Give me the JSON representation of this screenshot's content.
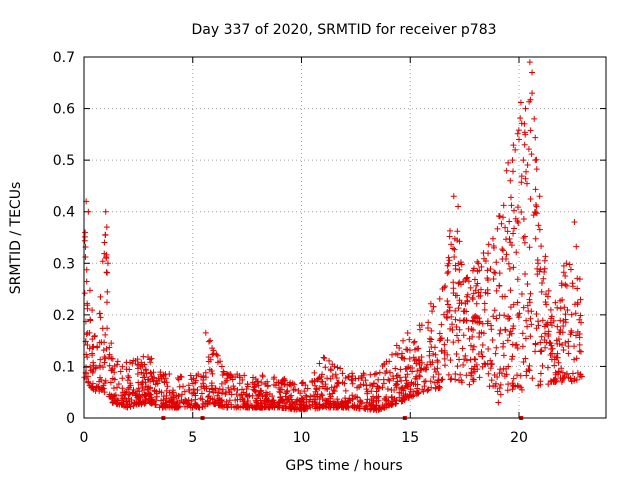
{
  "chart_data": {
    "type": "scatter",
    "title": "Day 337 of 2020, SRMTID for receiver p783",
    "xlabel": "GPS time / hours",
    "ylabel": "SRMTID / TECUs",
    "xlim": [
      0,
      24
    ],
    "ylim": [
      0,
      0.7
    ],
    "x_ticks": [
      0,
      5,
      10,
      15,
      20
    ],
    "x_tick_labels": [
      "0",
      "5",
      "10",
      "15",
      "20"
    ],
    "y_ticks": [
      0,
      0.1,
      0.2,
      0.3,
      0.4,
      0.5,
      0.6,
      0.7
    ],
    "y_tick_labels": [
      "0",
      "0.1",
      "0.2",
      "0.3",
      "0.4",
      "0.5",
      "0.6",
      "0.7"
    ],
    "grid": true,
    "legend": "none",
    "marker": "+",
    "color": "#e00000",
    "zero_markers_x": [
      3.65,
      5.45,
      14.75,
      20.1
    ],
    "profile": [
      {
        "t": 0.0,
        "lo": 0.08,
        "hi": 0.42
      },
      {
        "t": 0.3,
        "lo": 0.06,
        "hi": 0.25
      },
      {
        "t": 0.6,
        "lo": 0.05,
        "hi": 0.14
      },
      {
        "t": 1.0,
        "lo": 0.05,
        "hi": 0.4
      },
      {
        "t": 1.3,
        "lo": 0.03,
        "hi": 0.12
      },
      {
        "t": 2.0,
        "lo": 0.02,
        "hi": 0.11
      },
      {
        "t": 3.0,
        "lo": 0.03,
        "hi": 0.13
      },
      {
        "t": 3.5,
        "lo": 0.02,
        "hi": 0.09
      },
      {
        "t": 4.5,
        "lo": 0.02,
        "hi": 0.08
      },
      {
        "t": 5.5,
        "lo": 0.02,
        "hi": 0.1
      },
      {
        "t": 5.8,
        "lo": 0.03,
        "hi": 0.16
      },
      {
        "t": 6.5,
        "lo": 0.02,
        "hi": 0.09
      },
      {
        "t": 9.0,
        "lo": 0.02,
        "hi": 0.08
      },
      {
        "t": 10.0,
        "lo": 0.015,
        "hi": 0.07
      },
      {
        "t": 11.0,
        "lo": 0.02,
        "hi": 0.12
      },
      {
        "t": 12.0,
        "lo": 0.02,
        "hi": 0.09
      },
      {
        "t": 13.5,
        "lo": 0.015,
        "hi": 0.09
      },
      {
        "t": 14.5,
        "lo": 0.03,
        "hi": 0.16
      },
      {
        "t": 15.5,
        "lo": 0.05,
        "hi": 0.2
      },
      {
        "t": 16.5,
        "lo": 0.06,
        "hi": 0.26
      },
      {
        "t": 17.0,
        "lo": 0.07,
        "hi": 0.43
      },
      {
        "t": 17.5,
        "lo": 0.06,
        "hi": 0.27
      },
      {
        "t": 18.5,
        "lo": 0.07,
        "hi": 0.33
      },
      {
        "t": 19.0,
        "lo": 0.03,
        "hi": 0.38
      },
      {
        "t": 19.5,
        "lo": 0.05,
        "hi": 0.5
      },
      {
        "t": 20.5,
        "lo": 0.05,
        "hi": 0.69
      },
      {
        "t": 21.0,
        "lo": 0.05,
        "hi": 0.4
      },
      {
        "t": 21.5,
        "lo": 0.07,
        "hi": 0.2
      },
      {
        "t": 22.5,
        "lo": 0.07,
        "hi": 0.38
      },
      {
        "t": 22.9,
        "lo": 0.08,
        "hi": 0.25
      }
    ],
    "highlights": [
      {
        "x": 0.1,
        "y": 0.42
      },
      {
        "x": 0.2,
        "y": 0.4
      },
      {
        "x": 0.05,
        "y": 0.36
      },
      {
        "x": 1.0,
        "y": 0.4
      },
      {
        "x": 1.05,
        "y": 0.37
      },
      {
        "x": 1.1,
        "y": 0.3
      },
      {
        "x": 5.6,
        "y": 0.165
      },
      {
        "x": 5.8,
        "y": 0.15
      },
      {
        "x": 17.0,
        "y": 0.43
      },
      {
        "x": 17.2,
        "y": 0.41
      },
      {
        "x": 19.6,
        "y": 0.46
      },
      {
        "x": 19.7,
        "y": 0.5
      },
      {
        "x": 20.0,
        "y": 0.54
      },
      {
        "x": 20.2,
        "y": 0.5
      },
      {
        "x": 20.3,
        "y": 0.6
      },
      {
        "x": 20.5,
        "y": 0.69
      },
      {
        "x": 20.6,
        "y": 0.67
      },
      {
        "x": 20.6,
        "y": 0.63
      },
      {
        "x": 20.7,
        "y": 0.58
      },
      {
        "x": 20.75,
        "y": 0.5
      },
      {
        "x": 20.95,
        "y": 0.43
      },
      {
        "x": 22.55,
        "y": 0.38
      },
      {
        "x": 19.05,
        "y": 0.03
      },
      {
        "x": 18.85,
        "y": 0.33
      }
    ]
  }
}
